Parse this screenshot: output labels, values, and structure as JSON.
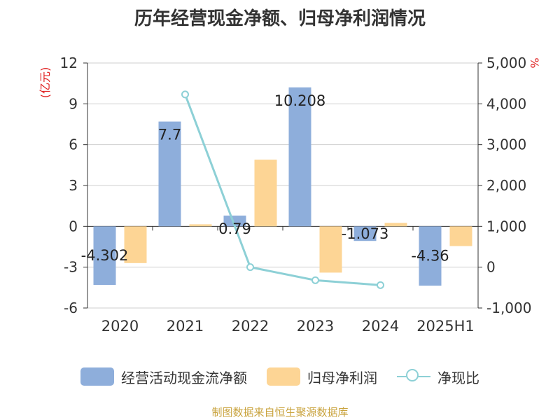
{
  "chart_data": {
    "type": "bar",
    "title": "历年经营现金净额、归母净利润情况",
    "categories": [
      "2020",
      "2021",
      "2022",
      "2023",
      "2024",
      "2025H1"
    ],
    "y_left": {
      "unit": "(亿元)",
      "min": -6,
      "max": 12,
      "ticks": [
        -6,
        -3,
        0,
        3,
        6,
        9,
        12
      ]
    },
    "y_right": {
      "unit": "%",
      "min": -1000,
      "max": 5000,
      "ticks": [
        -1000,
        0,
        1000,
        2000,
        3000,
        4000,
        5000
      ],
      "tick_labels": [
        "-1,000",
        "0",
        "1,000",
        "2,000",
        "3,000",
        "4,000",
        "5,000"
      ]
    },
    "series": [
      {
        "name": "经营活动现金流净额",
        "type": "bar",
        "axis": "left",
        "color": "#8eaedb",
        "values": [
          -4.302,
          7.7,
          0.79,
          10.208,
          -1.073,
          -4.36
        ],
        "labels": [
          "-4.302",
          "7.7",
          "0.79",
          "10.208",
          "-1.073",
          "-4.36"
        ]
      },
      {
        "name": "归母净利润",
        "type": "bar",
        "axis": "left",
        "color": "#fdd595",
        "values": [
          -2.7,
          0.15,
          4.9,
          -3.4,
          0.25,
          -1.45
        ]
      },
      {
        "name": "净现比",
        "type": "line",
        "axis": "right",
        "color": "#8dd0d6",
        "values": [
          null,
          4230,
          0,
          -320,
          -440,
          null
        ]
      }
    ],
    "grid": true,
    "legend_position": "bottom"
  },
  "footer": {
    "source": "制图数据来自恒生聚源数据库"
  }
}
